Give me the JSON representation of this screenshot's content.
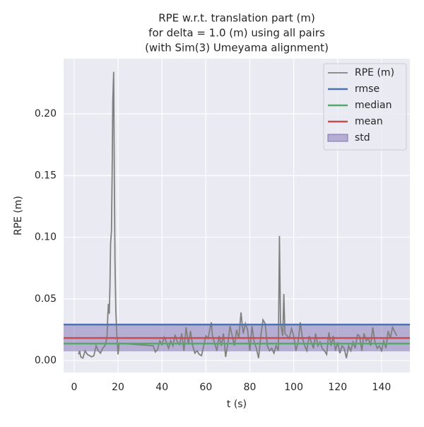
{
  "chart_data": {
    "type": "line",
    "title": [
      "RPE w.r.t. translation part (m)",
      "for delta = 1.0 (m) using all pairs",
      "(with Sim(3) Umeyama alignment)"
    ],
    "x_label": "t (s)",
    "y_label": "RPE (m)",
    "xlim": [
      -4.8,
      152.9
    ],
    "ylim": [
      -0.0097,
      0.2447
    ],
    "xticks": [
      0,
      20,
      40,
      60,
      80,
      100,
      120,
      140
    ],
    "yticks": [
      {
        "value": 0,
        "label": "0.00"
      },
      {
        "value": 0.05,
        "label": "0.05"
      },
      {
        "value": 0.1,
        "label": "0.10"
      },
      {
        "value": 0.15,
        "label": "0.15"
      },
      {
        "value": 0.2,
        "label": "0.20"
      }
    ],
    "grid": true,
    "legend": "upper right",
    "series": [
      {
        "name": "RPE (m)",
        "color": "#808080",
        "x": [
          2,
          2.5,
          3,
          4,
          5,
          6,
          7,
          8,
          9,
          10,
          11,
          12,
          13,
          14,
          14.5,
          15,
          15.3,
          15.6,
          16,
          16.3,
          16.6,
          17,
          17.3,
          17.6,
          18,
          18.3,
          18.6,
          19,
          19.5,
          20,
          20.5,
          36,
          37,
          38,
          39,
          40,
          41,
          42,
          43,
          44,
          45,
          46,
          47,
          48,
          49,
          50,
          51,
          52,
          53,
          54,
          55,
          56,
          57,
          58,
          59,
          60,
          61,
          62,
          62.5,
          63,
          64,
          65,
          66,
          67,
          68,
          69,
          70,
          71,
          72,
          73,
          74,
          75,
          76,
          76.5,
          77,
          78,
          79,
          80,
          81,
          82,
          83,
          84,
          85,
          86,
          87,
          88,
          89,
          90,
          91,
          92,
          93,
          93.5,
          94,
          95,
          95.5,
          96,
          97,
          98,
          99,
          100,
          101,
          102,
          103,
          104,
          105,
          106,
          107,
          108,
          109,
          110,
          111,
          112,
          113,
          114,
          115,
          116,
          117,
          118,
          119,
          120,
          121,
          122,
          123,
          124,
          125,
          126,
          127,
          128,
          129,
          130,
          131,
          132,
          133,
          134,
          135,
          136,
          137,
          138,
          139,
          140,
          141,
          142,
          143,
          144,
          145,
          147
        ],
        "values": [
          0.005,
          0.008,
          0.003,
          0.002,
          0.008,
          0.005,
          0.004,
          0.003,
          0.004,
          0.012,
          0.008,
          0.006,
          0.01,
          0.012,
          0.015,
          0.02,
          0.035,
          0.046,
          0.038,
          0.06,
          0.095,
          0.105,
          0.15,
          0.21,
          0.234,
          0.15,
          0.08,
          0.04,
          0.02,
          0.005,
          0.014,
          0.012,
          0.007,
          0.009,
          0.016,
          0.013,
          0.019,
          0.015,
          0.01,
          0.016,
          0.012,
          0.021,
          0.015,
          0.013,
          0.022,
          0.008,
          0.027,
          0.013,
          0.024,
          0.012,
          0.006,
          0.008,
          0.005,
          0.004,
          0.012,
          0.02,
          0.018,
          0.027,
          0.031,
          0.02,
          0.014,
          0.008,
          0.02,
          0.012,
          0.022,
          0.003,
          0.014,
          0.028,
          0.02,
          0.012,
          0.025,
          0.018,
          0.039,
          0.03,
          0.022,
          0.03,
          0.025,
          0.008,
          0.028,
          0.015,
          0.01,
          0.002,
          0.02,
          0.033,
          0.03,
          0.012,
          0.008,
          0.01,
          0.006,
          0.012,
          0.008,
          0.101,
          0.03,
          0.02,
          0.054,
          0.022,
          0.02,
          0.018,
          0.026,
          0.02,
          0.008,
          0.015,
          0.031,
          0.018,
          0.012,
          0.008,
          0.02,
          0.015,
          0.01,
          0.022,
          0.012,
          0.015,
          0.01,
          0.008,
          0.005,
          0.023,
          0.012,
          0.02,
          0.008,
          0.015,
          0.006,
          0.012,
          0.01,
          0.002,
          0.012,
          0.008,
          0.015,
          0.01,
          0.021,
          0.02,
          0.008,
          0.022,
          0.016,
          0.018,
          0.012,
          0.027,
          0.015,
          0.01,
          0.012,
          0.008,
          0.016,
          0.01,
          0.024,
          0.018,
          0.027,
          0.02
        ]
      }
    ],
    "stats": [
      {
        "name": "rmse",
        "color": "#4c72b0",
        "value": 0.0292
      },
      {
        "name": "median",
        "color": "#55a868",
        "value": 0.0138
      },
      {
        "name": "mean",
        "color": "#c44e52",
        "value": 0.0183
      }
    ],
    "std": {
      "name": "std",
      "color": "#8172b2",
      "value": 0.0108
    }
  }
}
